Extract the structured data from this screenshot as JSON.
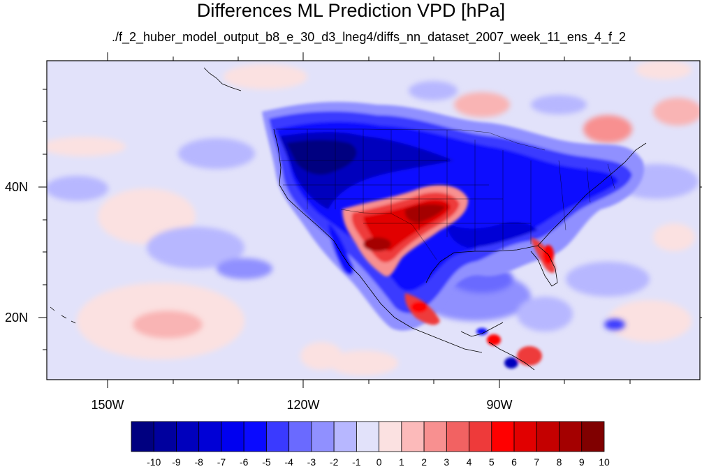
{
  "title": "Differences ML Prediction VPD [hPa]",
  "subtitle": "./f_2_huber_model_output_b8_e_30_d3_lneg4/diffs_nn_dataset_2007_week_11_ens_4_f_2",
  "lon_labels": [
    "150W",
    "120W",
    "90W"
  ],
  "lat_labels": [
    "40N",
    "20N"
  ],
  "colorbar": {
    "labels": [
      "-10",
      "-9",
      "-8",
      "-7",
      "-6",
      "-5",
      "-4",
      "-3",
      "-2",
      "-1",
      "0",
      "1",
      "2",
      "3",
      "4",
      "5",
      "6",
      "7",
      "8",
      "9",
      "10"
    ],
    "colors": [
      "#000080",
      "#00009e",
      "#0000bd",
      "#0000d6",
      "#0000f0",
      "#0a0aff",
      "#3a3aff",
      "#6a6aff",
      "#9090ff",
      "#b7b7ff",
      "#e2e2fa",
      "#fbe1e1",
      "#fcbaba",
      "#f89090",
      "#f26262",
      "#ee3a3a",
      "#ff0000",
      "#e10000",
      "#c40000",
      "#a40000",
      "#800000"
    ]
  },
  "palette": {
    "deep_blue": "#00008c",
    "mid_blue": "#0a0aff",
    "light_blue": "#b7b7ff",
    "pale_blue": "#e2e2fa",
    "pale_red": "#fbe1e1",
    "light_red": "#f89090",
    "mid_red": "#ee3a3a",
    "deep_red": "#a40000"
  }
}
